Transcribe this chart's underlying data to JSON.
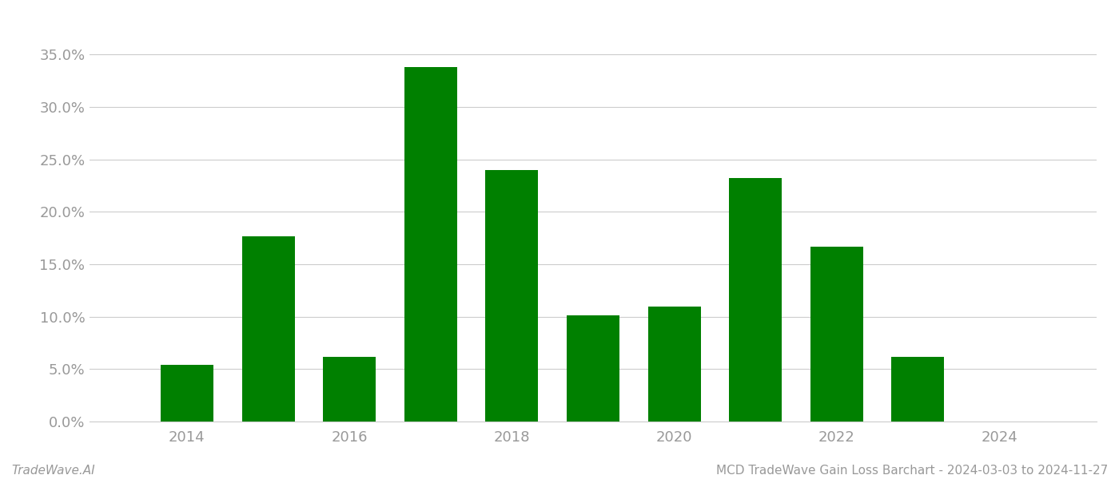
{
  "years": [
    2014,
    2015,
    2016,
    2017,
    2018,
    2019,
    2020,
    2021,
    2022,
    2023
  ],
  "values": [
    0.054,
    0.177,
    0.062,
    0.338,
    0.24,
    0.101,
    0.11,
    0.232,
    0.167,
    0.062
  ],
  "bar_color": "#008000",
  "background_color": "#ffffff",
  "grid_color": "#cccccc",
  "title": "MCD TradeWave Gain Loss Barchart - 2024-03-03 to 2024-11-27",
  "footer_left": "TradeWave.AI",
  "ylim": [
    0.0,
    0.37
  ],
  "yticks": [
    0.0,
    0.05,
    0.1,
    0.15,
    0.2,
    0.25,
    0.3,
    0.35
  ],
  "xtick_labels": [
    "2014",
    "2016",
    "2018",
    "2020",
    "2022",
    "2024"
  ],
  "xtick_positions": [
    2014,
    2016,
    2018,
    2020,
    2022,
    2024
  ],
  "bar_width": 0.65,
  "title_fontsize": 11,
  "footer_fontsize": 11,
  "tick_fontsize": 13,
  "tick_color": "#999999",
  "spine_color": "#cccccc",
  "xlim": [
    2012.8,
    2025.2
  ]
}
